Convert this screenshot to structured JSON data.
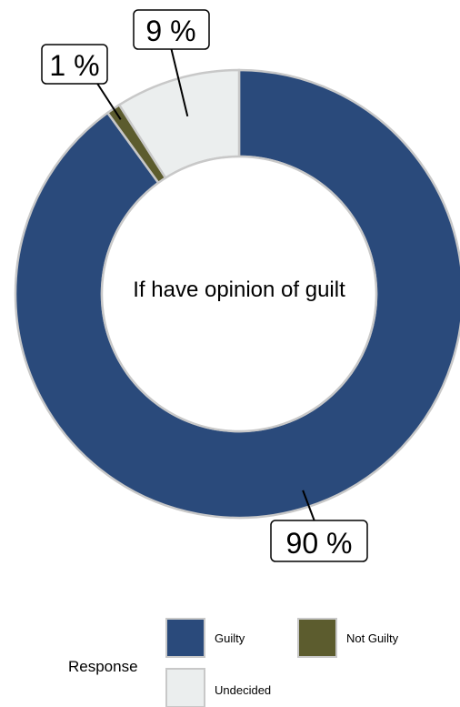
{
  "chart_data": {
    "type": "pie",
    "donut": true,
    "center_label": "If have opinion of guilt",
    "slices": [
      {
        "label": "Guilty",
        "value": 90,
        "display": "90 %",
        "color": "#2a4a7b"
      },
      {
        "label": "Not Guilty",
        "value": 1,
        "display": "1 %",
        "color": "#5c5c2e"
      },
      {
        "label": "Undecided",
        "value": 9,
        "display": "9 %",
        "color": "#ebeeee"
      }
    ],
    "legend": {
      "title": "Response",
      "placement": "bottom",
      "entries": [
        "Guilty",
        "Not Guilty",
        "Undecided"
      ]
    }
  }
}
